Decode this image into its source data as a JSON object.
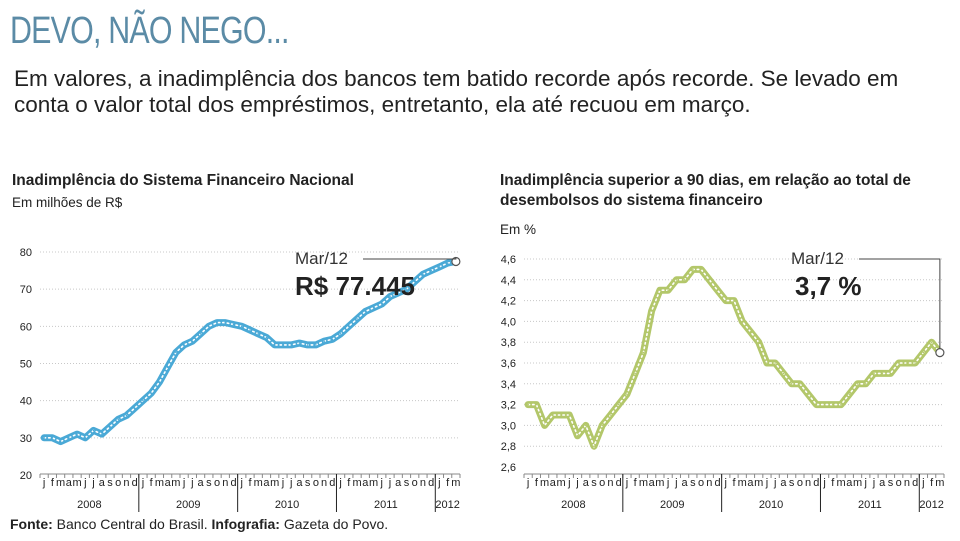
{
  "headline": "DEVO, NÃO NEGO...",
  "deck": "Em valores, a inadimplência dos bancos tem batido recorde após recorde. Se levado em conta o valor total dos empréstimos, entretanto, ela até recuou em março.",
  "footer": {
    "source_label": "Fonte:",
    "source": "Banco Central do Brasil.",
    "graphics_label": "Infografia:",
    "graphics": "Gazeta do Povo."
  },
  "colors": {
    "headline": "#5b8ba6",
    "left_series": "#4aa9d6",
    "right_series": "#b3c76a",
    "grid": "#c8c8c8"
  },
  "chart_data": [
    {
      "type": "line",
      "title": "Inadimplência do Sistema Financeiro Nacional",
      "ylabel": "Em milhões de R$",
      "ylim": [
        20,
        80
      ],
      "yticks": [
        "20",
        "30",
        "40",
        "50",
        "60",
        "70",
        "80"
      ],
      "month_labels": [
        "j",
        "f",
        "m",
        "a",
        "m",
        "j",
        "j",
        "a",
        "s",
        "o",
        "n",
        "d"
      ],
      "years": [
        "2008",
        "2009",
        "2010",
        "2011",
        "2012"
      ],
      "grid": true,
      "annotation": {
        "label": "Mar/12",
        "value": "R$ 77.445"
      },
      "x": [
        "2008-01",
        "2008-02",
        "2008-03",
        "2008-04",
        "2008-05",
        "2008-06",
        "2008-07",
        "2008-08",
        "2008-09",
        "2008-10",
        "2008-11",
        "2008-12",
        "2009-01",
        "2009-02",
        "2009-03",
        "2009-04",
        "2009-05",
        "2009-06",
        "2009-07",
        "2009-08",
        "2009-09",
        "2009-10",
        "2009-11",
        "2009-12",
        "2010-01",
        "2010-02",
        "2010-03",
        "2010-04",
        "2010-05",
        "2010-06",
        "2010-07",
        "2010-08",
        "2010-09",
        "2010-10",
        "2010-11",
        "2010-12",
        "2011-01",
        "2011-02",
        "2011-03",
        "2011-04",
        "2011-05",
        "2011-06",
        "2011-07",
        "2011-08",
        "2011-09",
        "2011-10",
        "2011-11",
        "2011-12",
        "2012-01",
        "2012-02",
        "2012-03"
      ],
      "values": [
        30,
        30,
        29,
        30,
        31,
        30,
        32,
        31,
        33,
        35,
        36,
        38,
        40,
        42,
        45,
        49,
        53,
        55,
        56,
        58,
        60,
        61,
        61,
        60.5,
        60,
        59,
        58,
        57,
        55,
        55,
        55,
        55.5,
        55,
        55,
        56,
        56.5,
        58,
        60,
        62,
        64,
        65,
        66,
        68,
        69,
        70,
        72,
        74,
        75,
        76,
        77,
        77.445
      ]
    },
    {
      "type": "line",
      "title": "Inadimplência superior a 90 dias, em relação ao total de desembolsos do sistema financeiro",
      "ylabel": "Em %",
      "ylim": [
        2.6,
        4.6
      ],
      "yticks": [
        "2,6",
        "2,8",
        "3,0",
        "3,2",
        "3,4",
        "3,6",
        "3,8",
        "4,0",
        "4,2",
        "4,4",
        "4,6"
      ],
      "month_labels": [
        "j",
        "f",
        "m",
        "a",
        "m",
        "j",
        "j",
        "a",
        "s",
        "o",
        "n",
        "d"
      ],
      "years": [
        "2008",
        "2009",
        "2010",
        "2011",
        "2012"
      ],
      "grid": true,
      "annotation": {
        "label": "Mar/12",
        "value": "3,7 %"
      },
      "x": [
        "2008-01",
        "2008-02",
        "2008-03",
        "2008-04",
        "2008-05",
        "2008-06",
        "2008-07",
        "2008-08",
        "2008-09",
        "2008-10",
        "2008-11",
        "2008-12",
        "2009-01",
        "2009-02",
        "2009-03",
        "2009-04",
        "2009-05",
        "2009-06",
        "2009-07",
        "2009-08",
        "2009-09",
        "2009-10",
        "2009-11",
        "2009-12",
        "2010-01",
        "2010-02",
        "2010-03",
        "2010-04",
        "2010-05",
        "2010-06",
        "2010-07",
        "2010-08",
        "2010-09",
        "2010-10",
        "2010-11",
        "2010-12",
        "2011-01",
        "2011-02",
        "2011-03",
        "2011-04",
        "2011-05",
        "2011-06",
        "2011-07",
        "2011-08",
        "2011-09",
        "2011-10",
        "2011-11",
        "2011-12",
        "2012-01",
        "2012-02",
        "2012-03"
      ],
      "values": [
        3.2,
        3.2,
        3.0,
        3.1,
        3.1,
        3.1,
        2.9,
        3.0,
        2.8,
        3.0,
        3.1,
        3.2,
        3.3,
        3.5,
        3.7,
        4.1,
        4.3,
        4.3,
        4.4,
        4.4,
        4.5,
        4.5,
        4.4,
        4.3,
        4.2,
        4.2,
        4.0,
        3.9,
        3.8,
        3.6,
        3.6,
        3.5,
        3.4,
        3.4,
        3.3,
        3.2,
        3.2,
        3.2,
        3.2,
        3.3,
        3.4,
        3.4,
        3.5,
        3.5,
        3.5,
        3.6,
        3.6,
        3.6,
        3.7,
        3.8,
        3.7
      ]
    }
  ]
}
